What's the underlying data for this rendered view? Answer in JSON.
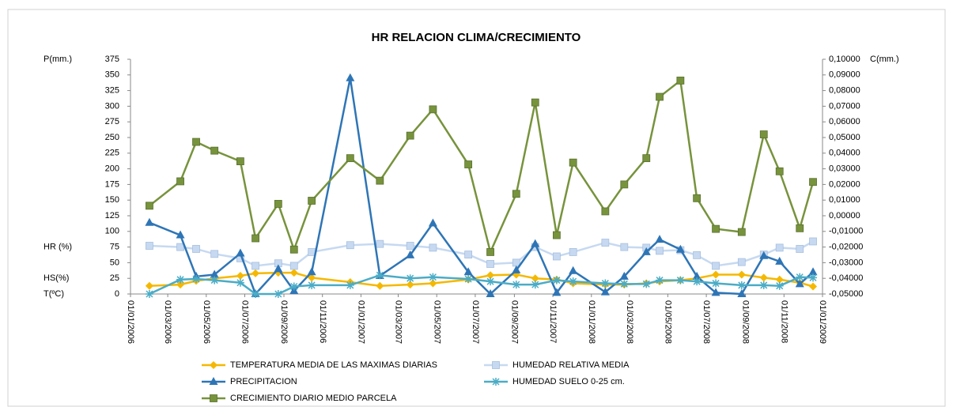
{
  "chart_data": {
    "type": "line",
    "title": "HR RELACION CLIMA/CRECIMIENTO",
    "ylabels": [
      {
        "value": 375,
        "label": "P(mm.)"
      },
      {
        "value": 75,
        "label": "HR (%)"
      },
      {
        "value": 25,
        "label": "HS(%)"
      },
      {
        "value": 0,
        "label": "T(ºC)"
      }
    ],
    "y2label": "C(mm.)",
    "x": [
      "2006-01-31",
      "2006-03-21",
      "2006-04-15",
      "2006-05-14",
      "2006-06-24",
      "2006-07-18",
      "2006-08-23",
      "2006-09-17",
      "2006-10-15",
      "2006-12-15",
      "2007-01-31",
      "2007-03-20",
      "2007-04-25",
      "2007-06-20",
      "2007-07-25",
      "2007-09-04",
      "2007-10-04",
      "2007-11-07",
      "2007-12-03",
      "2008-01-23",
      "2008-02-22",
      "2008-03-28",
      "2008-04-18",
      "2008-05-21",
      "2008-06-16",
      "2008-07-16",
      "2008-08-26",
      "2008-09-30",
      "2008-10-25",
      "2008-11-26",
      "2008-12-17"
    ],
    "xlim": [
      "2006-01-01",
      "2009-01-01"
    ],
    "xticks": [
      {
        "value": "2006-01-01",
        "label": "01/01/2006"
      },
      {
        "value": "2006-03-01",
        "label": "01/03/2006"
      },
      {
        "value": "2006-05-01",
        "label": "01/05/2006"
      },
      {
        "value": "2006-07-01",
        "label": "01/07/2006"
      },
      {
        "value": "2006-09-01",
        "label": "01/09/2006"
      },
      {
        "value": "2006-11-01",
        "label": "01/11/2006"
      },
      {
        "value": "2007-01-01",
        "label": "01/01/2007"
      },
      {
        "value": "2007-03-01",
        "label": "01/03/2007"
      },
      {
        "value": "2007-05-01",
        "label": "01/05/2007"
      },
      {
        "value": "2007-07-01",
        "label": "01/07/2007"
      },
      {
        "value": "2007-09-01",
        "label": "01/09/2007"
      },
      {
        "value": "2007-11-01",
        "label": "01/11/2007"
      },
      {
        "value": "2008-01-01",
        "label": "01/01/2008"
      },
      {
        "value": "2008-03-01",
        "label": "01/03/2008"
      },
      {
        "value": "2008-05-01",
        "label": "01/05/2008"
      },
      {
        "value": "2008-07-01",
        "label": "01/07/2008"
      },
      {
        "value": "2008-09-01",
        "label": "01/09/2008"
      },
      {
        "value": "2008-11-01",
        "label": "01/11/2008"
      },
      {
        "value": "2009-01-01",
        "label": "01/01/2009"
      }
    ],
    "ylim": [
      0,
      375
    ],
    "yticks": [
      0,
      25,
      50,
      75,
      100,
      125,
      150,
      175,
      200,
      225,
      250,
      275,
      300,
      325,
      350,
      375
    ],
    "y2lim": [
      -0.05,
      0.1
    ],
    "y2ticks": [
      {
        "value": -0.05,
        "label": "-0,05000"
      },
      {
        "value": -0.04,
        "label": "-0,04000"
      },
      {
        "value": -0.03,
        "label": "-0,03000"
      },
      {
        "value": -0.02,
        "label": "-0,02000"
      },
      {
        "value": -0.01,
        "label": "-0,01000"
      },
      {
        "value": 0,
        "label": "0,00000"
      },
      {
        "value": 0.01,
        "label": "0,01000"
      },
      {
        "value": 0.02,
        "label": "0,02000"
      },
      {
        "value": 0.03,
        "label": "0,03000"
      },
      {
        "value": 0.04,
        "label": "0,04000"
      },
      {
        "value": 0.05,
        "label": "0,05000"
      },
      {
        "value": 0.06,
        "label": "0,06000"
      },
      {
        "value": 0.07,
        "label": "0,07000"
      },
      {
        "value": 0.08,
        "label": "0,08000"
      },
      {
        "value": 0.09,
        "label": "0,09000"
      },
      {
        "value": 0.1,
        "label": "0,10000"
      }
    ],
    "series": [
      {
        "name": "TEMPERATURA MEDIA DE LAS MAXIMAS DIARIAS",
        "color": "#f5b800",
        "marker": "diamond",
        "values": [
          13,
          15,
          21,
          25,
          29,
          33,
          34,
          34,
          26,
          19,
          13,
          15,
          17,
          23,
          30,
          31,
          25,
          23,
          17,
          15,
          15,
          17,
          20,
          22,
          25,
          31,
          31,
          26,
          23,
          18,
          12
        ]
      },
      {
        "name": "HUMEDAD RELATIVA MEDIA",
        "color": "#c6d9f1",
        "marker": "square",
        "values": [
          77,
          75,
          72,
          64,
          57,
          45,
          49,
          45,
          67,
          78,
          80,
          77,
          74,
          63,
          48,
          50,
          75,
          60,
          67,
          82,
          75,
          74,
          69,
          70,
          62,
          45,
          51,
          63,
          74,
          72,
          84
        ]
      },
      {
        "name": "PRECIPITACION",
        "color": "#2e75b6",
        "marker": "triangle",
        "values": [
          114,
          94,
          28,
          31,
          65,
          0,
          40,
          5,
          35,
          345,
          29,
          62,
          113,
          35,
          0,
          38,
          80,
          2,
          37,
          3,
          28,
          67,
          87,
          71,
          28,
          2,
          0,
          61,
          52,
          16,
          35
        ]
      },
      {
        "name": "HUMEDAD SUELO 0-25 cm.",
        "color": "#4bacc6",
        "marker": "star",
        "values": [
          0,
          23,
          24,
          22,
          18,
          0,
          0,
          12,
          14,
          14,
          30,
          25,
          27,
          24,
          20,
          15,
          15,
          22,
          20,
          17,
          16,
          16,
          22,
          22,
          20,
          17,
          14,
          14,
          13,
          27,
          26
        ]
      },
      {
        "name": "CRECIMIENTO DIARIO MEDIO PARCELA",
        "color": "#77933c",
        "marker": "square",
        "axis": "y2",
        "values": [
          0.0064,
          0.022,
          0.0472,
          0.0416,
          0.0348,
          -0.0144,
          0.0076,
          -0.0216,
          0.0096,
          0.0368,
          0.0224,
          0.0512,
          0.068,
          0.0328,
          -0.0232,
          0.014,
          0.0724,
          -0.0124,
          0.034,
          0.0028,
          0.02,
          0.0368,
          0.076,
          0.0864,
          0.0112,
          -0.0084,
          -0.0104,
          0.052,
          0.0284,
          -0.008,
          0.0216
        ]
      }
    ]
  }
}
